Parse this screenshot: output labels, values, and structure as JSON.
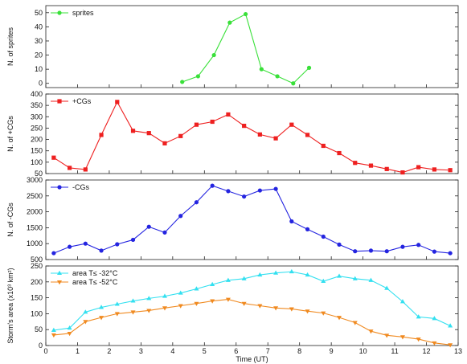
{
  "chart_data": {
    "type": "line",
    "shared_x": {
      "label": "Time (UT)",
      "range": [
        0,
        13
      ],
      "ticks": [
        0,
        1,
        2,
        3,
        4,
        5,
        6,
        7,
        8,
        9,
        10,
        11,
        12,
        13
      ]
    },
    "panels": [
      {
        "id": "sprites",
        "ylabel": "N. of sprites",
        "ylim": [
          -3,
          55
        ],
        "yticks": [
          0,
          10,
          20,
          30,
          40,
          50
        ],
        "legend_position": "top-left",
        "series": [
          {
            "name": "sprites",
            "color": "#39e039",
            "marker": "circle",
            "points": [
              [
                4.3,
                1
              ],
              [
                4.8,
                5
              ],
              [
                5.3,
                20
              ],
              [
                5.8,
                43
              ],
              [
                6.3,
                49
              ],
              [
                6.8,
                10
              ],
              [
                7.3,
                5
              ],
              [
                7.8,
                0
              ],
              [
                8.3,
                11
              ]
            ]
          }
        ]
      },
      {
        "id": "pos-cg",
        "ylabel": "N. of +CGs",
        "ylim": [
          50,
          400
        ],
        "yticks": [
          50,
          100,
          150,
          200,
          250,
          300,
          350,
          400
        ],
        "legend_position": "top-left",
        "series": [
          {
            "name": "+CGs",
            "color": "#ee2020",
            "marker": "square",
            "points": [
              [
                0.25,
                120
              ],
              [
                0.75,
                75
              ],
              [
                1.25,
                68
              ],
              [
                1.75,
                220
              ],
              [
                2.25,
                365
              ],
              [
                2.75,
                238
              ],
              [
                3.25,
                228
              ],
              [
                3.75,
                183
              ],
              [
                4.25,
                215
              ],
              [
                4.75,
                265
              ],
              [
                5.25,
                278
              ],
              [
                5.75,
                310
              ],
              [
                6.25,
                260
              ],
              [
                6.75,
                222
              ],
              [
                7.25,
                205
              ],
              [
                7.75,
                265
              ],
              [
                8.25,
                220
              ],
              [
                8.75,
                172
              ],
              [
                9.25,
                140
              ],
              [
                9.75,
                97
              ],
              [
                10.25,
                85
              ],
              [
                10.75,
                70
              ],
              [
                11.25,
                55
              ],
              [
                11.75,
                78
              ],
              [
                12.25,
                68
              ],
              [
                12.75,
                65
              ]
            ]
          }
        ]
      },
      {
        "id": "neg-cg",
        "ylabel": "N. of -CGs",
        "ylim": [
          500,
          3000
        ],
        "yticks": [
          500,
          1000,
          1500,
          2000,
          2500,
          3000
        ],
        "legend_position": "top-left",
        "series": [
          {
            "name": "-CGs",
            "color": "#2424e0",
            "marker": "circle",
            "points": [
              [
                0.25,
                700
              ],
              [
                0.75,
                900
              ],
              [
                1.25,
                1000
              ],
              [
                1.75,
                780
              ],
              [
                2.25,
                980
              ],
              [
                2.75,
                1120
              ],
              [
                3.25,
                1530
              ],
              [
                3.75,
                1350
              ],
              [
                4.25,
                1870
              ],
              [
                4.75,
                2300
              ],
              [
                5.25,
                2820
              ],
              [
                5.75,
                2650
              ],
              [
                6.25,
                2480
              ],
              [
                6.75,
                2670
              ],
              [
                7.25,
                2720
              ],
              [
                7.75,
                1700
              ],
              [
                8.25,
                1450
              ],
              [
                8.75,
                1220
              ],
              [
                9.25,
                970
              ],
              [
                9.75,
                760
              ],
              [
                10.25,
                780
              ],
              [
                10.75,
                760
              ],
              [
                11.25,
                900
              ],
              [
                11.75,
                960
              ],
              [
                12.25,
                750
              ],
              [
                12.75,
                700
              ]
            ]
          }
        ]
      },
      {
        "id": "area",
        "ylabel": "Storm's area (x10³ km²)",
        "ylim": [
          0,
          250
        ],
        "yticks": [
          0,
          50,
          100,
          150,
          200,
          250
        ],
        "legend_position": "top-left",
        "series": [
          {
            "name": "area T≤ -32°C",
            "color": "#33e0f0",
            "marker": "triangle-up",
            "points": [
              [
                0.25,
                48
              ],
              [
                0.75,
                55
              ],
              [
                1.25,
                105
              ],
              [
                1.75,
                120
              ],
              [
                2.25,
                130
              ],
              [
                2.75,
                140
              ],
              [
                3.25,
                148
              ],
              [
                3.75,
                155
              ],
              [
                4.25,
                165
              ],
              [
                4.75,
                178
              ],
              [
                5.25,
                192
              ],
              [
                5.75,
                205
              ],
              [
                6.25,
                210
              ],
              [
                6.75,
                222
              ],
              [
                7.25,
                228
              ],
              [
                7.75,
                232
              ],
              [
                8.25,
                222
              ],
              [
                8.75,
                202
              ],
              [
                9.25,
                218
              ],
              [
                9.75,
                210
              ],
              [
                10.25,
                205
              ],
              [
                10.75,
                180
              ],
              [
                11.25,
                138
              ],
              [
                11.75,
                90
              ],
              [
                12.25,
                85
              ],
              [
                12.75,
                62
              ]
            ]
          },
          {
            "name": "area T≤ -52°C",
            "color": "#f08a20",
            "marker": "triangle-down",
            "points": [
              [
                0.25,
                33
              ],
              [
                0.75,
                38
              ],
              [
                1.25,
                75
              ],
              [
                1.75,
                88
              ],
              [
                2.25,
                100
              ],
              [
                2.75,
                105
              ],
              [
                3.25,
                110
              ],
              [
                3.75,
                118
              ],
              [
                4.25,
                125
              ],
              [
                4.75,
                132
              ],
              [
                5.25,
                140
              ],
              [
                5.75,
                145
              ],
              [
                6.25,
                132
              ],
              [
                6.75,
                125
              ],
              [
                7.25,
                118
              ],
              [
                7.75,
                115
              ],
              [
                8.25,
                108
              ],
              [
                8.75,
                102
              ],
              [
                9.25,
                88
              ],
              [
                9.75,
                72
              ],
              [
                10.25,
                45
              ],
              [
                10.75,
                32
              ],
              [
                11.25,
                27
              ],
              [
                11.75,
                20
              ],
              [
                12.25,
                8
              ],
              [
                12.75,
                2
              ]
            ]
          }
        ]
      }
    ]
  }
}
